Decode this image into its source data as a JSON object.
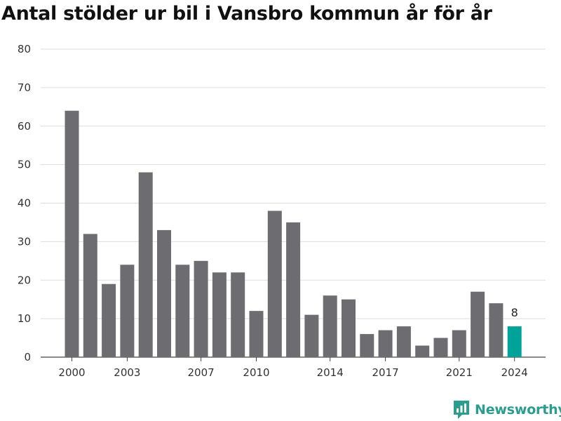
{
  "chart_data": {
    "type": "bar",
    "title": "Antal stölder ur bil i Vansbro kommun år för år",
    "xlabel": "",
    "ylabel": "",
    "categories": [
      2000,
      2001,
      2002,
      2003,
      2004,
      2005,
      2006,
      2007,
      2008,
      2009,
      2010,
      2011,
      2012,
      2013,
      2014,
      2015,
      2016,
      2017,
      2018,
      2019,
      2020,
      2021,
      2022,
      2023,
      2024
    ],
    "values": [
      64,
      32,
      19,
      24,
      48,
      33,
      24,
      25,
      22,
      22,
      12,
      38,
      35,
      11,
      16,
      15,
      6,
      7,
      8,
      3,
      5,
      7,
      17,
      14,
      8
    ],
    "x_tick_labels": [
      "2000",
      "2003",
      "2007",
      "2010",
      "2014",
      "2017",
      "2021",
      "2024"
    ],
    "y_ticks": [
      0,
      10,
      20,
      30,
      40,
      50,
      60,
      70,
      80
    ],
    "ylim": [
      0,
      80
    ],
    "grid": true,
    "highlight": {
      "category": 2024,
      "label": "8",
      "color": "#00a39a"
    },
    "bar_color": "#6d6c71"
  },
  "brand": {
    "name": "Newsworthy",
    "icon": "newsworthy-logo-icon",
    "color": "#2a9d8f"
  }
}
